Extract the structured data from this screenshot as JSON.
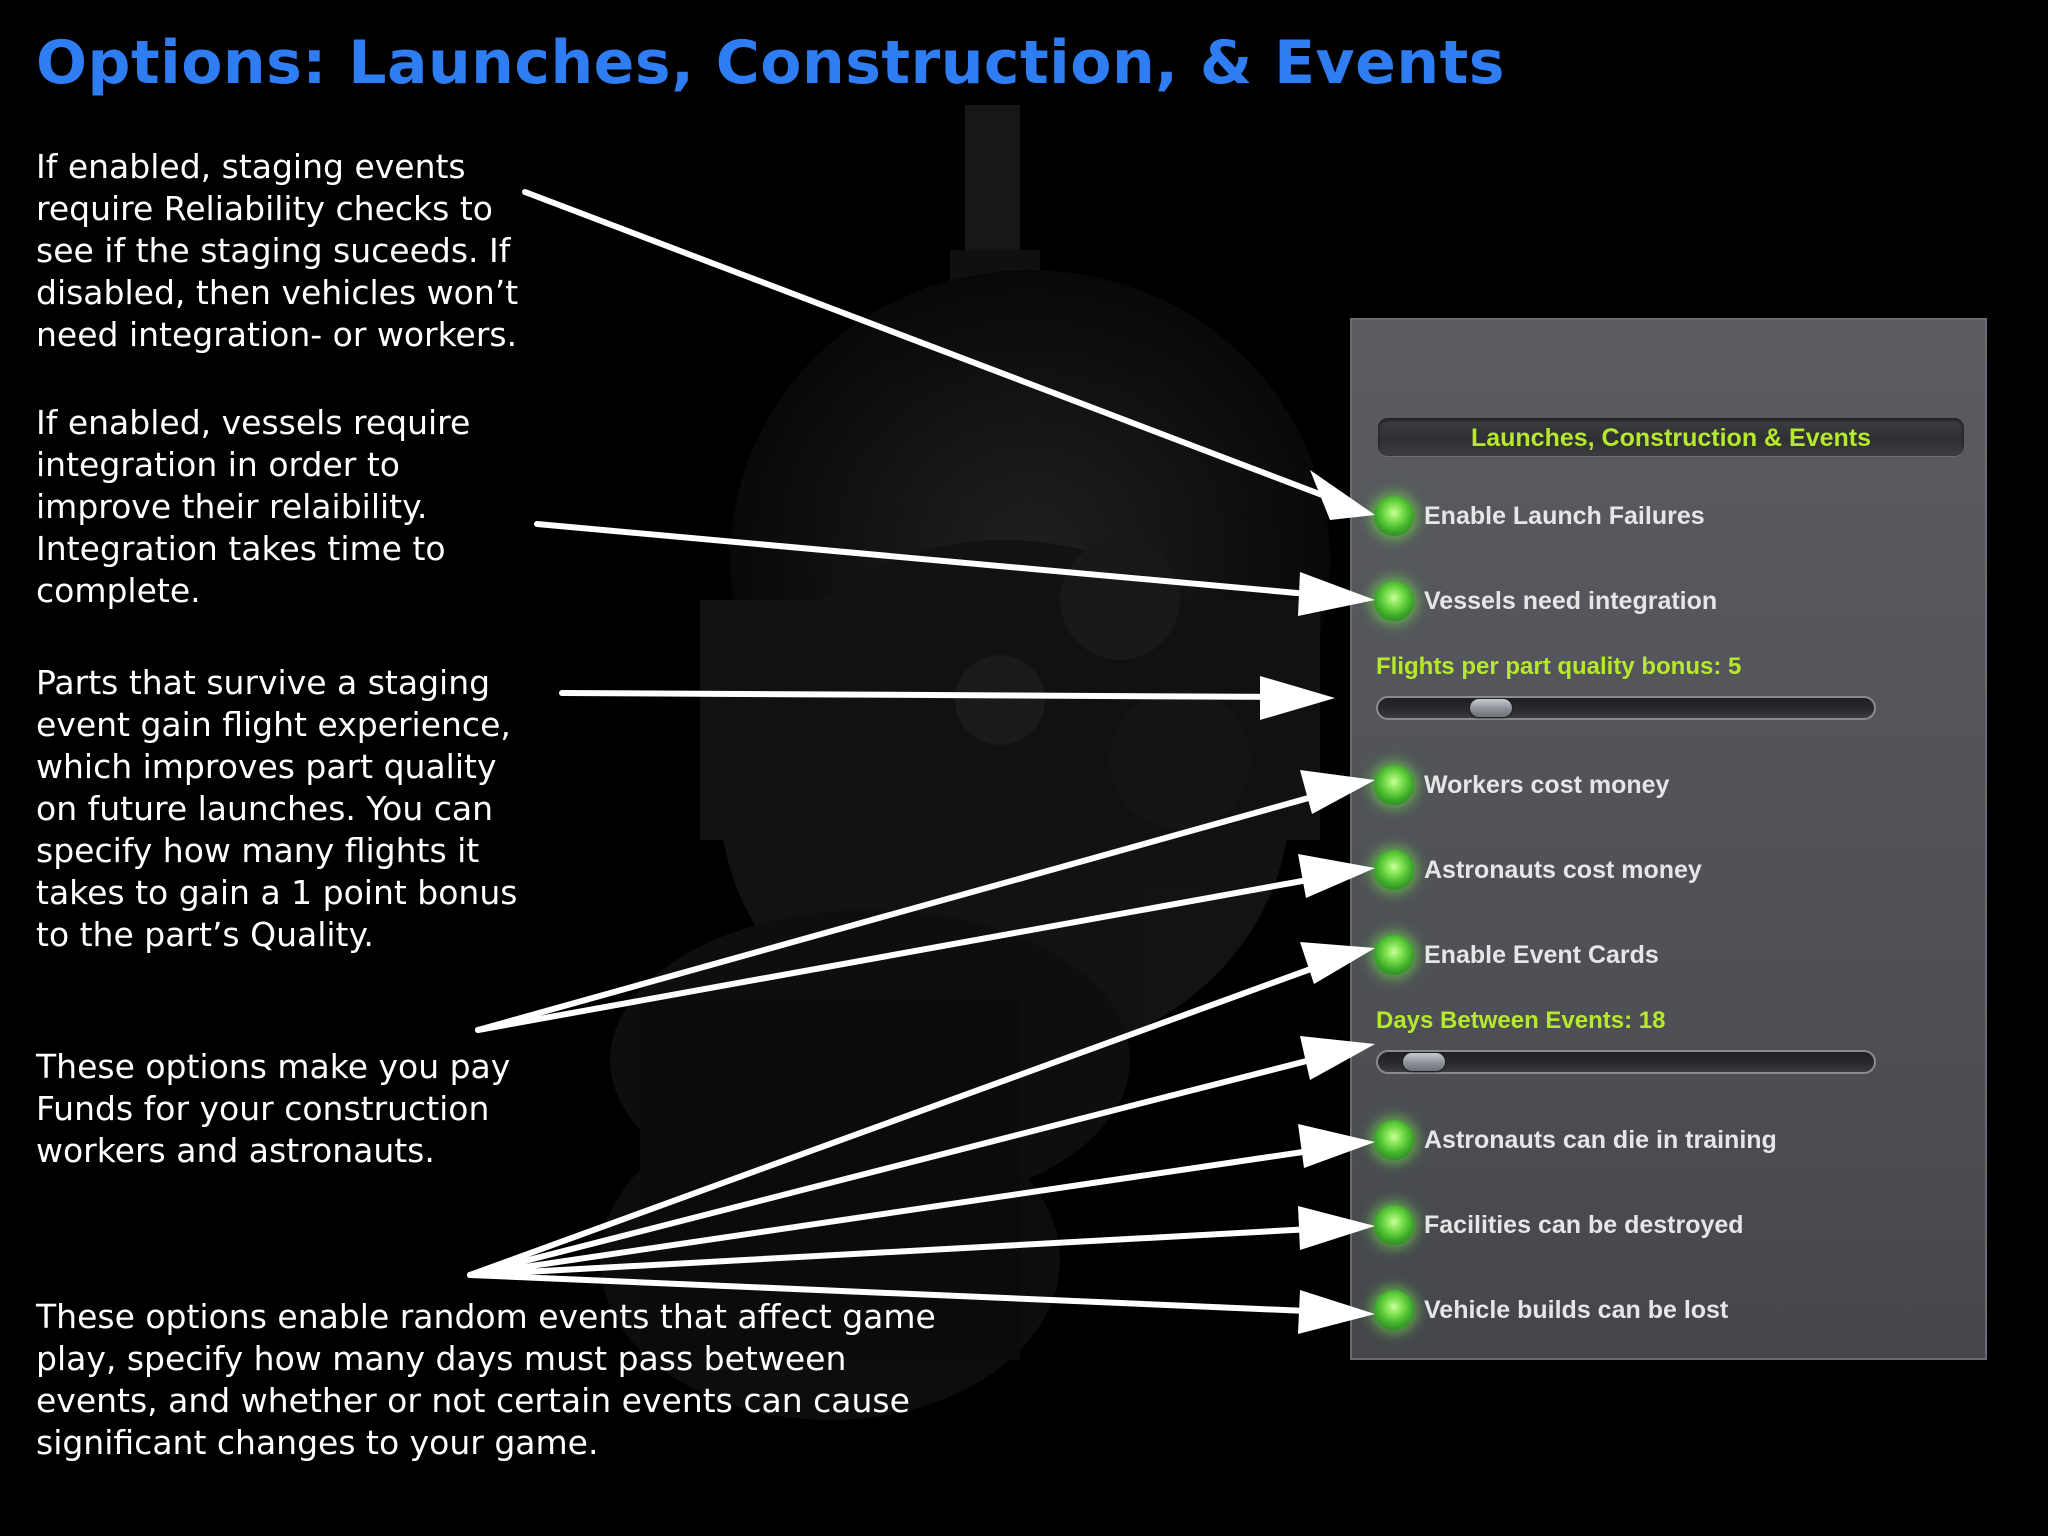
{
  "title": "Options: Launches, Construction, & Events",
  "descriptions": {
    "launch_failures": "If enabled, staging events require Reliability checks to see if the staging suceeds. If disabled, then vehicles won’t need integration- or workers.",
    "integration": "If enabled, vessels require integration in order to improve their relaibility. Integration takes time to complete.",
    "flight_experience": "Parts that survive a staging event gain flight experience, which improves part quality on future launches. You can specify how many flights it takes to gain a 1 point bonus to the part’s Quality.",
    "costs": "These options make you pay Funds for your construction workers and astronauts.",
    "events": "These options enable random events that affect game play, specify how many days must pass between events, and whether or not certain events can cause significant changes to your game."
  },
  "panel": {
    "header": "Launches, Construction & Events",
    "options": {
      "launch_failures": "Enable Launch Failures",
      "vessel_integration": "Vessels need integration",
      "workers_cost": "Workers cost money",
      "astronauts_cost": "Astronauts cost money",
      "event_cards": "Enable Event Cards",
      "astronauts_die": "Astronauts can die in training",
      "facilities_destroyed": "Facilities can be destroyed",
      "builds_lost": "Vehicle builds can be lost"
    },
    "sliders": {
      "flights_bonus": {
        "label": "Flights per part quality bonus: 5",
        "value": 5,
        "fraction": 0.2
      },
      "days_between": {
        "label": "Days Between Events: 18",
        "value": 18,
        "fraction": 0.05
      }
    }
  },
  "colors": {
    "title": "#2f7df2",
    "accent": "#b6e82c",
    "led": "#5ed03a",
    "panel": "#55575c"
  }
}
